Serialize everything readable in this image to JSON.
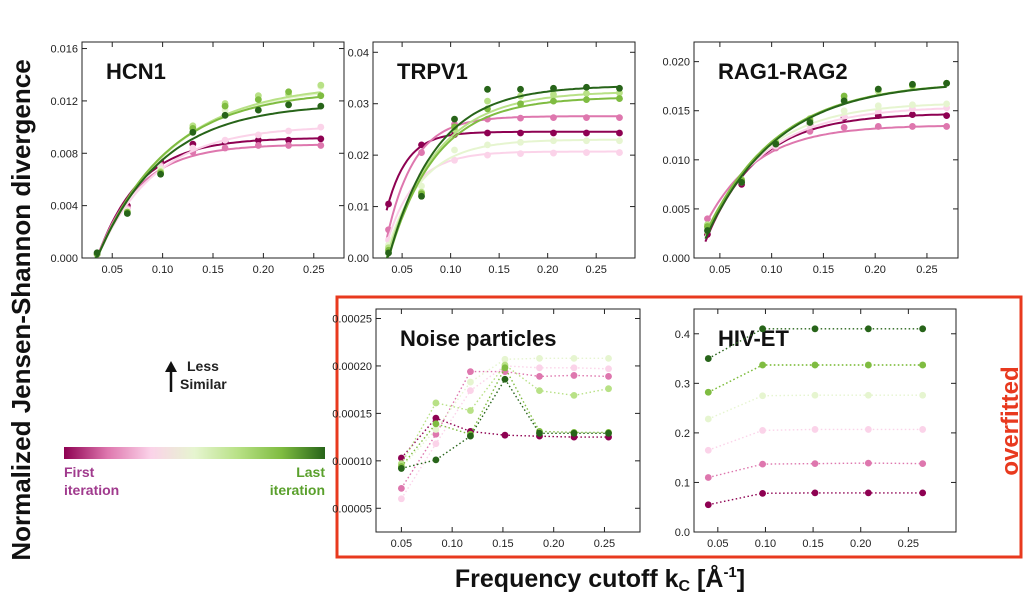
{
  "figure": {
    "ylabel": "Normalized Jensen-Shannon divergence",
    "xlabel_main": "Frequency cutoff k",
    "xlabel_sub": "C",
    "xlabel_tail": " [Å",
    "xlabel_sup": "-1",
    "xlabel_end": "]",
    "overfitted_label": "overfitted",
    "arrow_label_line1": "Less",
    "arrow_label_line2": "Similar",
    "legend_first_line1": "First",
    "legend_first_line2": "iteration",
    "legend_last_line1": "Last",
    "legend_last_line2": "iteration",
    "colors": [
      "#8e0152",
      "#de77ae",
      "#fbd3e9",
      "#e6f5d0",
      "#b8e186",
      "#7fbc41",
      "#276419"
    ],
    "label_first_color": "#a03a8d",
    "label_last_color": "#5aa02c",
    "box_color": "#e8391e"
  },
  "chart_data": [
    {
      "type": "line",
      "title": "HCN1",
      "xlim": [
        0.02,
        0.28
      ],
      "ylim": [
        0,
        0.0165
      ],
      "xticks": [
        "0.05",
        "0.10",
        "0.15",
        "0.20",
        "0.25"
      ],
      "xtick_values": [
        0.05,
        0.1,
        0.15,
        0.2,
        0.25
      ],
      "yticks": [
        "0.000",
        "0.004",
        "0.008",
        "0.012",
        "0.016"
      ],
      "ytick_values": [
        0,
        0.004,
        0.008,
        0.012,
        0.016
      ],
      "style": "fit",
      "x": [
        0.035,
        0.065,
        0.098,
        0.13,
        0.162,
        0.195,
        0.225,
        0.257
      ],
      "series": [
        {
          "values": [
            0.0003,
            0.004,
            0.0074,
            0.0087,
            0.0089,
            0.009,
            0.009,
            0.0091
          ]
        },
        {
          "values": [
            0.0003,
            0.0038,
            0.0071,
            0.0081,
            0.0084,
            0.0086,
            0.0086,
            0.0086
          ]
        },
        {
          "values": [
            0.0003,
            0.0037,
            0.007,
            0.0084,
            0.009,
            0.0094,
            0.0097,
            0.01
          ]
        },
        {
          "values": [
            0.0003,
            0.0036,
            0.0068,
            0.0097,
            0.0113,
            0.0122,
            0.0125,
            0.0131
          ]
        },
        {
          "values": [
            0.0003,
            0.0035,
            0.0066,
            0.0101,
            0.0118,
            0.0124,
            0.0125,
            0.0132
          ]
        },
        {
          "values": [
            0.0003,
            0.0035,
            0.0065,
            0.0099,
            0.0116,
            0.0121,
            0.0127,
            0.0124
          ]
        },
        {
          "values": [
            0.0004,
            0.0034,
            0.0064,
            0.0096,
            0.0109,
            0.0113,
            0.0117,
            0.0116
          ]
        }
      ]
    },
    {
      "type": "line",
      "title": "TRPV1",
      "xlim": [
        0.02,
        0.29
      ],
      "ylim": [
        0,
        0.042
      ],
      "xticks": [
        "0.05",
        "0.10",
        "0.15",
        "0.20",
        "0.25"
      ],
      "xtick_values": [
        0.05,
        0.1,
        0.15,
        0.2,
        0.25
      ],
      "yticks": [
        "0.00",
        "0.01",
        "0.02",
        "0.03",
        "0.04"
      ],
      "ytick_values": [
        0,
        0.01,
        0.02,
        0.03,
        0.04
      ],
      "style": "fit",
      "x": [
        0.036,
        0.07,
        0.104,
        0.138,
        0.172,
        0.206,
        0.24,
        0.274
      ],
      "series": [
        {
          "values": [
            0.0105,
            0.022,
            0.024,
            0.0243,
            0.0243,
            0.0243,
            0.0243,
            0.0243
          ]
        },
        {
          "values": [
            0.0055,
            0.0205,
            0.026,
            0.027,
            0.0272,
            0.0273,
            0.0273,
            0.0273
          ]
        },
        {
          "values": [
            0.0035,
            0.016,
            0.019,
            0.02,
            0.0203,
            0.0204,
            0.0205,
            0.0205
          ]
        },
        {
          "values": [
            0.0025,
            0.014,
            0.021,
            0.022,
            0.0225,
            0.0228,
            0.0228,
            0.0228
          ]
        },
        {
          "values": [
            0.002,
            0.0128,
            0.025,
            0.0305,
            0.0315,
            0.0318,
            0.032,
            0.0321
          ]
        },
        {
          "values": [
            0.0015,
            0.0125,
            0.0255,
            0.029,
            0.03,
            0.0305,
            0.0308,
            0.031
          ]
        },
        {
          "values": [
            0.001,
            0.012,
            0.027,
            0.0328,
            0.0328,
            0.033,
            0.0332,
            0.033
          ]
        }
      ]
    },
    {
      "type": "line",
      "title": "RAG1-RAG2",
      "xlim": [
        0.025,
        0.28
      ],
      "ylim": [
        0,
        0.022
      ],
      "xticks": [
        "0.05",
        "0.10",
        "0.15",
        "0.20",
        "0.25"
      ],
      "xtick_values": [
        0.05,
        0.1,
        0.15,
        0.2,
        0.25
      ],
      "yticks": [
        "0.000",
        "0.005",
        "0.010",
        "0.015",
        "0.020"
      ],
      "ytick_values": [
        0,
        0.005,
        0.01,
        0.015,
        0.02
      ],
      "style": "fit",
      "x": [
        0.038,
        0.071,
        0.104,
        0.137,
        0.17,
        0.203,
        0.236,
        0.269
      ],
      "series": [
        {
          "values": [
            0.0024,
            0.0075,
            0.0115,
            0.0136,
            0.0143,
            0.0145,
            0.0146,
            0.0145
          ]
        },
        {
          "values": [
            0.004,
            0.0078,
            0.0112,
            0.0129,
            0.0133,
            0.0134,
            0.0134,
            0.0134
          ]
        },
        {
          "values": [
            0.0032,
            0.0077,
            0.0114,
            0.0135,
            0.0145,
            0.015,
            0.0152,
            0.0153
          ]
        },
        {
          "values": [
            0.003,
            0.0078,
            0.0116,
            0.014,
            0.015,
            0.0155,
            0.0156,
            0.0157
          ]
        },
        {
          "values": [
            0.0034,
            0.008,
            0.0118,
            0.0142,
            0.0162,
            0.017,
            0.0175,
            0.0178
          ]
        },
        {
          "values": [
            0.0032,
            0.0079,
            0.0117,
            0.014,
            0.0165,
            0.0172,
            0.0176,
            0.0178
          ]
        },
        {
          "values": [
            0.0028,
            0.0077,
            0.0116,
            0.0138,
            0.016,
            0.0172,
            0.0177,
            0.0178
          ]
        }
      ]
    },
    {
      "type": "line",
      "title": "Noise particles",
      "xlim": [
        0.025,
        0.285
      ],
      "ylim": [
        2.5e-05,
        0.00026
      ],
      "xticks": [
        "0.05",
        "0.10",
        "0.15",
        "0.20",
        "0.25"
      ],
      "xtick_values": [
        0.05,
        0.1,
        0.15,
        0.2,
        0.25
      ],
      "yticks": [
        "0.00005",
        "0.00010",
        "0.00015",
        "0.00020",
        "0.00025"
      ],
      "ytick_values": [
        5e-05,
        0.0001,
        0.00015,
        0.0002,
        0.00025
      ],
      "style": "dotted",
      "x": [
        0.05,
        0.084,
        0.118,
        0.152,
        0.186,
        0.22,
        0.254
      ],
      "series": [
        {
          "values": [
            0.000103,
            0.000145,
            0.000131,
            0.000127,
            0.000126,
            0.000125,
            0.000125
          ]
        },
        {
          "values": [
            7.1e-05,
            0.000128,
            0.000194,
            0.000194,
            0.000189,
            0.00019,
            0.000189
          ]
        },
        {
          "values": [
            6e-05,
            0.000118,
            0.000174,
            0.0002,
            0.000198,
            0.000198,
            0.000197
          ]
        },
        {
          "values": [
            9.3e-05,
            0.000133,
            0.000183,
            0.000207,
            0.000208,
            0.000208,
            0.000208
          ]
        },
        {
          "values": [
            9.7e-05,
            0.000161,
            0.000153,
            0.000201,
            0.000174,
            0.000169,
            0.000176
          ]
        },
        {
          "values": [
            9.4e-05,
            0.000139,
            0.000128,
            0.000198,
            0.000131,
            0.00013,
            0.00013
          ]
        },
        {
          "values": [
            9.2e-05,
            0.000101,
            0.000126,
            0.000186,
            0.000129,
            0.000129,
            0.000129
          ]
        }
      ]
    },
    {
      "type": "line",
      "title": "HIV-ET",
      "xlim": [
        0.025,
        0.3
      ],
      "ylim": [
        0,
        0.45
      ],
      "xticks": [
        "0.05",
        "0.10",
        "0.15",
        "0.20",
        "0.25"
      ],
      "xtick_values": [
        0.05,
        0.1,
        0.15,
        0.2,
        0.25
      ],
      "yticks": [
        "0.0",
        "0.1",
        "0.2",
        "0.3",
        "0.4"
      ],
      "ytick_values": [
        0,
        0.1,
        0.2,
        0.3,
        0.4
      ],
      "style": "dotted",
      "x": [
        0.04,
        0.097,
        0.152,
        0.208,
        0.265
      ],
      "series": [
        {
          "values": [
            0.055,
            0.078,
            0.079,
            0.079,
            0.079
          ]
        },
        {
          "values": [
            0.11,
            0.137,
            0.138,
            0.139,
            0.138
          ]
        },
        {
          "values": [
            0.165,
            0.205,
            0.207,
            0.207,
            0.207
          ]
        },
        {
          "values": [
            0.228,
            0.275,
            0.276,
            0.276,
            0.276
          ]
        },
        {
          "values": [
            0.282,
            0.337,
            0.337,
            0.337,
            0.337
          ]
        },
        {
          "values": [
            0.282,
            0.337,
            0.337,
            0.337,
            0.337
          ]
        },
        {
          "values": [
            0.35,
            0.41,
            0.41,
            0.41,
            0.41
          ]
        }
      ]
    }
  ]
}
